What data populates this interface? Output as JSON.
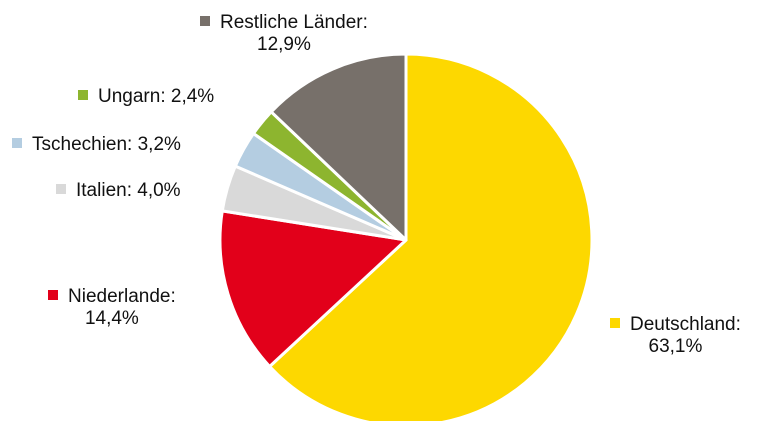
{
  "chart_data": {
    "type": "pie",
    "start_angle_deg": 0,
    "direction": "clockwise",
    "slices": [
      {
        "label": "Deutschland",
        "value": 63.1,
        "value_label": "63,1%",
        "color": "#FDD800"
      },
      {
        "label": "Niederlande",
        "value": 14.4,
        "value_label": "14,4%",
        "color": "#E2001A"
      },
      {
        "label": "Italien",
        "value": 4.0,
        "value_label": "4,0%",
        "color": "#D9D9D9"
      },
      {
        "label": "Tschechien",
        "value": 3.2,
        "value_label": "3,2%",
        "color": "#B4CDE1"
      },
      {
        "label": "Ungarn",
        "value": 2.4,
        "value_label": "2,4%",
        "color": "#8DB52F"
      },
      {
        "label": "Restliche Länder",
        "value": 12.9,
        "value_label": "12,9%",
        "color": "#77706A"
      }
    ],
    "labels": {
      "deutschland": {
        "name": "Deutschland:",
        "value": "63,1%"
      },
      "niederlande": {
        "name": "Niederlande:",
        "value": "14,4%"
      },
      "italien": {
        "text": "Italien: 4,0%"
      },
      "tschechien": {
        "text": "Tschechien: 3,2%"
      },
      "ungarn": {
        "text": "Ungarn: 2,4%"
      },
      "restliche": {
        "name": "Restliche Länder:",
        "value": "12,9%"
      }
    }
  }
}
